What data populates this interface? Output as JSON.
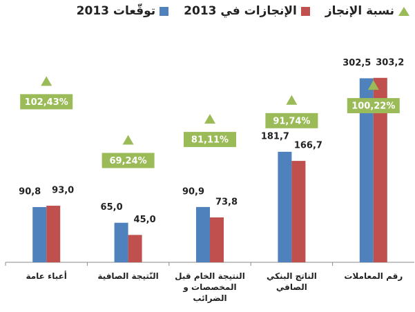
{
  "chart_data": {
    "type": "bar",
    "categories": [
      "أعباء عامة",
      "النّتيجة الصافية",
      "النتيجة الخام قبل المخصصات و الضرائب",
      "الناتج البنكي الصافي",
      "رقم المعاملات"
    ],
    "series": [
      {
        "name": "توقّعات 2013",
        "color": "#4f81bd",
        "values": [
          90.8,
          65.0,
          90.9,
          181.7,
          302.5
        ],
        "value_labels": [
          "90,8",
          "65,0",
          "90,9",
          "181,7",
          "302,5"
        ]
      },
      {
        "name": "الإنجازات في 2013",
        "color": "#c0504d",
        "values": [
          93.0,
          45.0,
          73.8,
          166.7,
          303.2
        ],
        "value_labels": [
          "93,0",
          "45,0",
          "73,8",
          "166,7",
          "303,2"
        ]
      },
      {
        "name": "نسبة الإنجاز",
        "color": "#9bbb59",
        "axis": "y2",
        "marker": "triangle",
        "values": [
          102.43,
          69.24,
          81.11,
          91.74,
          100.22
        ],
        "value_labels": [
          "102,43%",
          "69,24%",
          "81,11%",
          "91,74%",
          "100,22%"
        ]
      }
    ],
    "ylim": [
      0,
      320
    ],
    "y2lim": [
      0,
      110
    ]
  }
}
